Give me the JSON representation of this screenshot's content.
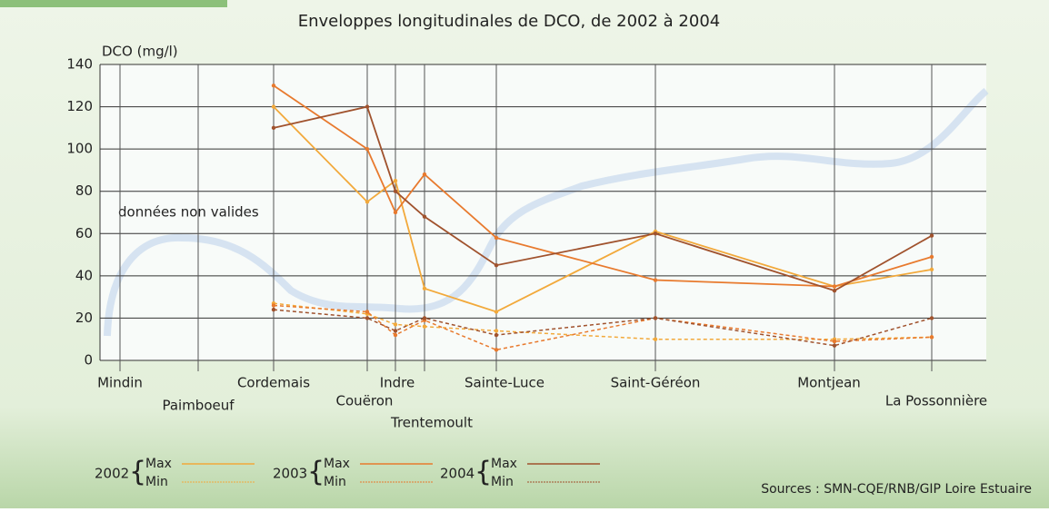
{
  "chart_data": {
    "type": "line",
    "title": "Enveloppes longitudinales de DCO, de 2002 à 2004",
    "y_label": "DCO (mg/l)",
    "annotation": "données non valides",
    "source": "Sources : SMN-CQE/RNB/GIP Loire Estuaire",
    "categories": [
      "Mindin",
      "Paimboeuf",
      "Cordemais",
      "Couëron",
      "Indre",
      "Trentemoult",
      "Sainte-Luce",
      "Saint-Géréon",
      "Montjean",
      "La Possonnière"
    ],
    "ylim": [
      0,
      140
    ],
    "yticks": [
      0,
      20,
      40,
      60,
      80,
      100,
      120,
      140
    ],
    "grid": true,
    "groups": [
      {
        "name": "2002",
        "series": [
          {
            "name": "Max",
            "color": "#f2a93b",
            "dashed": false,
            "values": [
              null,
              null,
              120,
              75,
              85,
              34,
              23,
              61,
              35,
              43
            ]
          },
          {
            "name": "Min",
            "color": "#f2a93b",
            "dashed": true,
            "values": [
              null,
              null,
              27,
              22,
              17,
              16,
              14,
              10,
              10,
              11
            ]
          }
        ]
      },
      {
        "name": "2003",
        "series": [
          {
            "name": "Max",
            "color": "#e87a2e",
            "dashed": false,
            "values": [
              null,
              null,
              130,
              100,
              70,
              88,
              58,
              38,
              35,
              49
            ]
          },
          {
            "name": "Min",
            "color": "#e87a2e",
            "dashed": true,
            "values": [
              null,
              null,
              26,
              23,
              12,
              19,
              5,
              20,
              9,
              11
            ]
          }
        ]
      },
      {
        "name": "2004",
        "series": [
          {
            "name": "Max",
            "color": "#a0522d",
            "dashed": false,
            "values": [
              null,
              null,
              110,
              120,
              80,
              68,
              45,
              60,
              33,
              59
            ]
          },
          {
            "name": "Min",
            "color": "#a0522d",
            "dashed": true,
            "values": [
              null,
              null,
              24,
              20,
              14,
              20,
              12,
              20,
              7,
              20
            ]
          }
        ]
      }
    ]
  }
}
